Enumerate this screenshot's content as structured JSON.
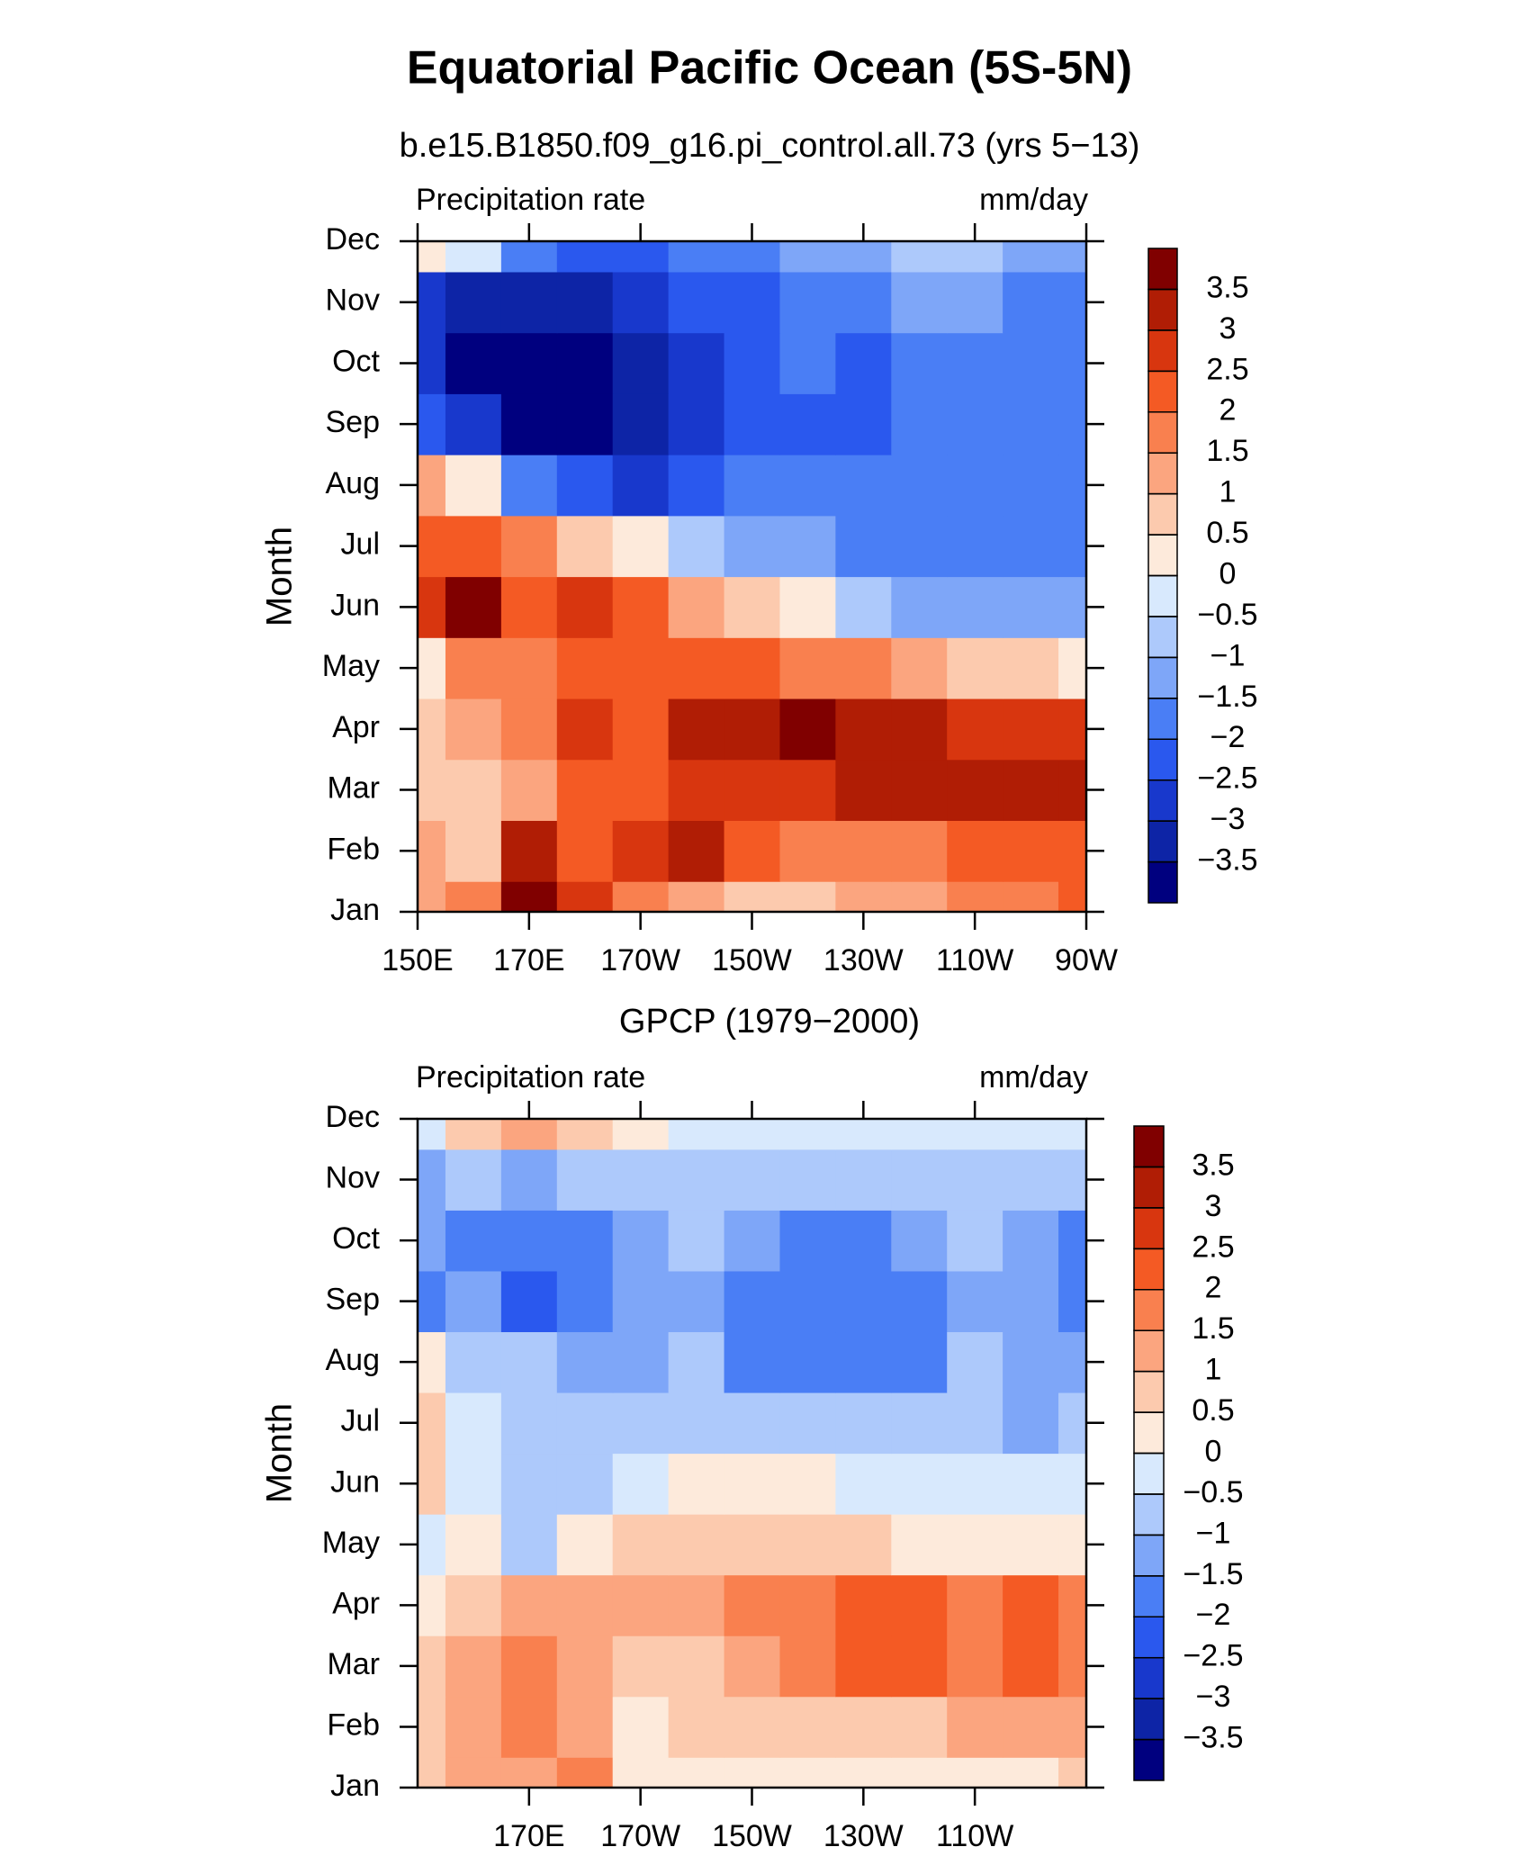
{
  "title": "Equatorial Pacific Ocean (5S-5N)",
  "chart_data": [
    {
      "type": "heatmap",
      "title": "b.e15.B1850.f09_g16.pi_control.all.73 (yrs 5−13)",
      "left_label": "Precipitation rate",
      "right_label": "mm/day",
      "ylabel": "Month",
      "categories": [
        "Jan",
        "Feb",
        "Mar",
        "Apr",
        "May",
        "Jun",
        "Jul",
        "Aug",
        "Sep",
        "Oct",
        "Nov",
        "Dec"
      ],
      "x": [
        150,
        160,
        170,
        180,
        190,
        200,
        210,
        220,
        230,
        240,
        250,
        260,
        270
      ],
      "xlim": [
        150,
        270
      ],
      "xticks": [
        {
          "value": 150,
          "label": "150E"
        },
        {
          "value": 170,
          "label": "170E"
        },
        {
          "value": 190,
          "label": "170W"
        },
        {
          "value": 210,
          "label": "150W"
        },
        {
          "value": 230,
          "label": "130W"
        },
        {
          "value": 250,
          "label": "110W"
        },
        {
          "value": 270,
          "label": "90W"
        }
      ],
      "values": [
        [
          1.0,
          1.5,
          3.8,
          2.5,
          1.5,
          1.0,
          0.8,
          0.6,
          1.0,
          1.2,
          1.6,
          1.8,
          2.0
        ],
        [
          1.2,
          0.8,
          3.2,
          2.2,
          2.8,
          3.2,
          2.2,
          1.8,
          1.6,
          1.8,
          2.0,
          2.1,
          2.2
        ],
        [
          0.6,
          0.8,
          1.2,
          2.3,
          2.4,
          2.6,
          2.7,
          2.8,
          3.0,
          3.1,
          3.2,
          3.2,
          3.3
        ],
        [
          0.8,
          1.0,
          1.6,
          2.8,
          2.4,
          3.2,
          3.3,
          3.6,
          3.2,
          3.1,
          2.8,
          2.7,
          2.6
        ],
        [
          0.4,
          1.6,
          1.8,
          2.3,
          2.2,
          2.2,
          2.0,
          1.8,
          1.5,
          1.2,
          0.9,
          0.6,
          0.4
        ],
        [
          2.6,
          3.6,
          2.0,
          2.6,
          2.0,
          1.3,
          0.7,
          0.2,
          -0.6,
          -1.1,
          -1.3,
          -1.3,
          -1.2
        ],
        [
          2.0,
          2.3,
          1.8,
          0.6,
          0.2,
          -0.6,
          -1.1,
          -1.3,
          -1.6,
          -1.6,
          -1.6,
          -1.6,
          -1.6
        ],
        [
          1.2,
          0.0,
          -2.0,
          -2.5,
          -2.6,
          -2.3,
          -2.0,
          -1.8,
          -1.6,
          -1.6,
          -1.6,
          -1.8,
          -1.8
        ],
        [
          -2.2,
          -3.0,
          -3.8,
          -3.8,
          -3.5,
          -2.8,
          -2.2,
          -2.1,
          -2.1,
          -1.6,
          -1.6,
          -2.0,
          -2.0
        ],
        [
          -2.8,
          -3.6,
          -3.9,
          -3.8,
          -3.4,
          -2.8,
          -2.3,
          -2.0,
          -2.1,
          -1.6,
          -1.6,
          -2.0,
          -2.0
        ],
        [
          -2.8,
          -3.2,
          -3.4,
          -3.3,
          -2.8,
          -2.4,
          -2.2,
          -1.9,
          -1.6,
          -1.4,
          -1.4,
          -1.6,
          -1.7
        ],
        [
          0.3,
          -0.5,
          -1.6,
          -2.1,
          -2.2,
          -2.0,
          -1.8,
          -1.4,
          -1.2,
          -1.0,
          -1.0,
          -1.2,
          -1.3
        ]
      ],
      "levels": [
        {
          "value": -3.5,
          "label": "−3.5"
        },
        {
          "value": -3,
          "label": "−3"
        },
        {
          "value": -2.5,
          "label": "−2.5"
        },
        {
          "value": -2,
          "label": "−2"
        },
        {
          "value": -1.5,
          "label": "−1.5"
        },
        {
          "value": -1,
          "label": "−1"
        },
        {
          "value": -0.5,
          "label": "−0.5"
        },
        0,
        0.5,
        1,
        1.5,
        2,
        2.5,
        3,
        3.5
      ],
      "colors": [
        "#00007f",
        "#0d24a6",
        "#1838cc",
        "#2a58ee",
        "#4a7ef5",
        "#7ea6f8",
        "#adc9fb",
        "#d8e9fd",
        "#fdeadb",
        "#fccaae",
        "#fba57f",
        "#f9804f",
        "#f45a24",
        "#d8360f",
        "#b01d05",
        "#800000"
      ]
    },
    {
      "type": "heatmap",
      "title": "GPCP (1979−2000)",
      "left_label": "Precipitation rate",
      "right_label": "mm/day",
      "ylabel": "Month",
      "categories": [
        "Jan",
        "Feb",
        "Mar",
        "Apr",
        "May",
        "Jun",
        "Jul",
        "Aug",
        "Sep",
        "Oct",
        "Nov",
        "Dec"
      ],
      "x": [
        150,
        160,
        170,
        180,
        190,
        200,
        210,
        220,
        230,
        240,
        250,
        260,
        270
      ],
      "xlim": [
        150,
        270
      ],
      "xticks": [
        {
          "value": 170,
          "label": "170E"
        },
        {
          "value": 190,
          "label": "170W"
        },
        {
          "value": 210,
          "label": "150W"
        },
        {
          "value": 230,
          "label": "130W"
        },
        {
          "value": 250,
          "label": "110W"
        }
      ],
      "values": [
        [
          0.6,
          1.0,
          1.2,
          1.5,
          0.3,
          0.2,
          0.2,
          0.2,
          0.2,
          0.3,
          0.4,
          0.4,
          0.6
        ],
        [
          0.8,
          1.1,
          1.6,
          1.4,
          0.4,
          0.5,
          0.6,
          0.7,
          0.8,
          0.9,
          1.0,
          1.1,
          1.3
        ],
        [
          0.6,
          1.2,
          1.8,
          1.2,
          0.6,
          0.8,
          1.3,
          1.5,
          2.2,
          2.2,
          1.6,
          2.2,
          1.6
        ],
        [
          0.2,
          0.8,
          1.4,
          1.0,
          1.2,
          1.0,
          1.6,
          1.8,
          2.0,
          2.2,
          1.7,
          2.0,
          1.8
        ],
        [
          -0.2,
          0.4,
          -0.6,
          0.3,
          0.6,
          0.8,
          0.7,
          0.6,
          0.5,
          0.4,
          0.3,
          0.3,
          0.2
        ],
        [
          0.6,
          -0.4,
          -0.8,
          -0.7,
          -0.2,
          0.3,
          0.3,
          0.2,
          -0.1,
          -0.3,
          -0.4,
          -0.4,
          -0.4
        ],
        [
          0.8,
          -0.2,
          -0.6,
          -0.8,
          -0.8,
          -0.8,
          -0.9,
          -1.0,
          -0.9,
          -0.9,
          -1.0,
          -1.2,
          -0.9
        ],
        [
          0.4,
          -0.6,
          -0.9,
          -1.2,
          -1.2,
          -1.0,
          -1.6,
          -1.6,
          -1.7,
          -1.6,
          -1.0,
          -1.3,
          -1.4
        ],
        [
          -1.6,
          -1.2,
          -2.1,
          -2.0,
          -1.4,
          -1.2,
          -1.6,
          -1.6,
          -1.7,
          -1.6,
          -1.2,
          -1.4,
          -1.6
        ],
        [
          -1.2,
          -1.6,
          -1.6,
          -2.0,
          -1.2,
          -1.0,
          -1.5,
          -1.6,
          -1.6,
          -1.2,
          -1.0,
          -1.3,
          -1.6
        ],
        [
          -1.2,
          -0.8,
          -1.2,
          -1.0,
          -0.9,
          -0.7,
          -0.6,
          -0.7,
          -0.6,
          -0.6,
          -0.7,
          -0.6,
          -0.9
        ],
        [
          -0.2,
          0.8,
          1.3,
          0.9,
          0.3,
          -0.2,
          -0.3,
          -0.5,
          -0.4,
          -0.4,
          -0.5,
          -0.4,
          -0.4
        ]
      ],
      "levels": [
        {
          "value": -3.5,
          "label": "−3.5"
        },
        {
          "value": -3,
          "label": "−3"
        },
        {
          "value": -2.5,
          "label": "−2.5"
        },
        {
          "value": -2,
          "label": "−2"
        },
        {
          "value": -1.5,
          "label": "−1.5"
        },
        {
          "value": -1,
          "label": "−1"
        },
        {
          "value": -0.5,
          "label": "−0.5"
        },
        0,
        0.5,
        1,
        1.5,
        2,
        2.5,
        3,
        3.5
      ],
      "colors": [
        "#00007f",
        "#0d24a6",
        "#1838cc",
        "#2a58ee",
        "#4a7ef5",
        "#7ea6f8",
        "#adc9fb",
        "#d8e9fd",
        "#fdeadb",
        "#fccaae",
        "#fba57f",
        "#f9804f",
        "#f45a24",
        "#d8360f",
        "#b01d05",
        "#800000"
      ]
    }
  ]
}
